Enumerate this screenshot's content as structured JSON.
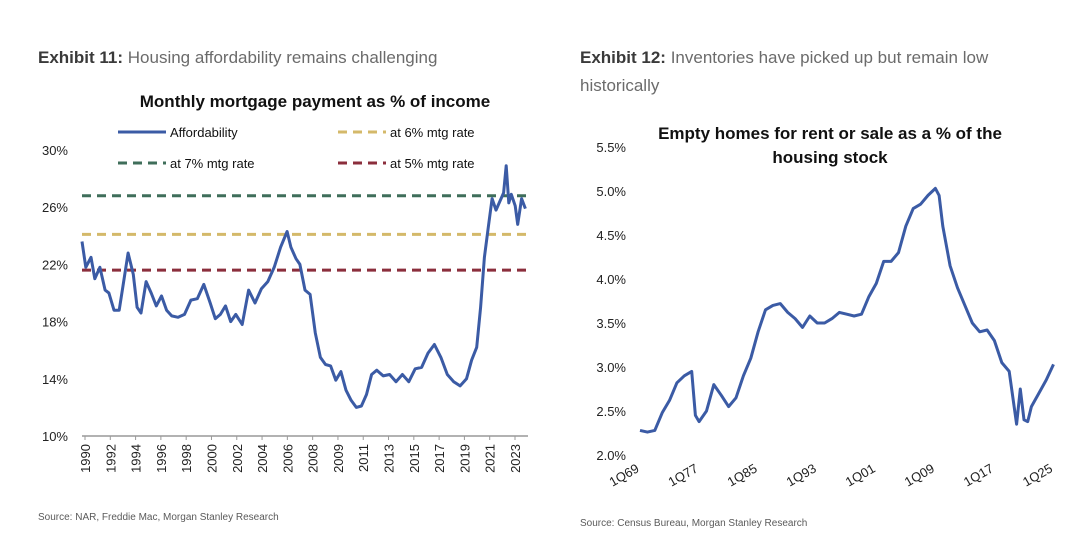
{
  "exhibits": [
    {
      "label": "Exhibit 11:",
      "caption": "Housing affordability remains challenging",
      "source": "Source: NAR, Freddie Mac, Morgan Stanley Research"
    },
    {
      "label": "Exhibit 12:",
      "caption_line1": "Inventories have picked up but remain low",
      "caption_line2": "historically",
      "source": "Source: Census Bureau, Morgan Stanley Research"
    }
  ],
  "chart_data": [
    {
      "type": "line",
      "title": "Monthly mortgage payment as % of income",
      "ylim": [
        10,
        30
      ],
      "yticks": [
        "10%",
        "14%",
        "18%",
        "22%",
        "26%",
        "30%"
      ],
      "xticks": [
        "1990",
        "1992",
        "1994",
        "1996",
        "1998",
        "2000",
        "2002",
        "2004",
        "2006",
        "2008",
        "2009",
        "2011",
        "2013",
        "2015",
        "2017",
        "2019",
        "2021",
        "2023"
      ],
      "legend": [
        "Affordability",
        "at 6% mtg rate",
        "at 7% mtg rate",
        "at 5% mtg rate"
      ],
      "colors": {
        "affordability": "#3b5ba5",
        "rate6": "#d4b96a",
        "rate7": "#3f6e5a",
        "rate5": "#8b2e3c"
      },
      "series": [
        {
          "name": "Affordability",
          "x": [
            1990.0,
            1990.3,
            1990.7,
            1991.0,
            1991.4,
            1991.8,
            1992.1,
            1992.5,
            1992.9,
            1993.2,
            1993.6,
            1994.0,
            1994.3,
            1994.6,
            1995.0,
            1995.4,
            1995.8,
            1996.2,
            1996.6,
            1997.0,
            1997.5,
            1998.0,
            1998.5,
            1999.0,
            1999.5,
            2000.0,
            2000.4,
            2000.8,
            2001.2,
            2001.6,
            2002.0,
            2002.5,
            2003.0,
            2003.5,
            2004.0,
            2004.5,
            2005.0,
            2005.5,
            2006.0,
            2006.3,
            2006.7,
            2007.0,
            2007.4,
            2007.8,
            2008.2,
            2008.6,
            2009.0,
            2009.4,
            2009.8,
            2010.2,
            2010.6,
            2011.0,
            2011.4,
            2011.8,
            2012.2,
            2012.6,
            2013.0,
            2013.5,
            2014.0,
            2014.5,
            2015.0,
            2015.5,
            2016.0,
            2016.5,
            2017.0,
            2017.5,
            2018.0,
            2018.5,
            2019.0,
            2019.5,
            2020.0,
            2020.4,
            2020.8,
            2021.1,
            2021.4,
            2021.7,
            2022.0,
            2022.3,
            2022.6,
            2022.9,
            2023.1,
            2023.3,
            2023.5,
            2023.8,
            2024.0,
            2024.3,
            2024.6
          ],
          "values": [
            23.6,
            21.8,
            22.5,
            21.0,
            21.8,
            20.2,
            20.0,
            18.8,
            18.8,
            20.5,
            22.8,
            21.3,
            19.0,
            18.6,
            20.8,
            20.0,
            19.1,
            19.8,
            18.8,
            18.4,
            18.3,
            18.5,
            19.5,
            19.6,
            20.6,
            19.3,
            18.2,
            18.5,
            19.1,
            18.0,
            18.5,
            17.8,
            20.2,
            19.3,
            20.3,
            20.8,
            21.8,
            23.2,
            24.3,
            23.2,
            22.4,
            22.0,
            20.2,
            19.9,
            17.2,
            15.5,
            15.0,
            14.9,
            13.9,
            14.5,
            13.2,
            12.5,
            12.0,
            12.1,
            12.9,
            14.3,
            14.6,
            14.2,
            14.3,
            13.8,
            14.3,
            13.8,
            14.7,
            14.8,
            15.8,
            16.4,
            15.5,
            14.3,
            13.8,
            13.5,
            14.0,
            15.3,
            16.2,
            19.0,
            22.5,
            24.6,
            26.6,
            25.8,
            26.4,
            27.0,
            28.9,
            26.3,
            26.9,
            26.1,
            24.8,
            26.6,
            25.9
          ]
        },
        {
          "name": "at 7% mtg rate",
          "value": 26.8
        },
        {
          "name": "at 6% mtg rate",
          "value": 24.1
        },
        {
          "name": "at 5% mtg rate",
          "value": 21.6
        }
      ]
    },
    {
      "type": "line",
      "title_line1": "Empty homes for rent or sale as a % of the",
      "title_line2": "housing stock",
      "ylim": [
        2.0,
        5.5
      ],
      "yticks": [
        "2.0%",
        "2.5%",
        "3.0%",
        "3.5%",
        "4.0%",
        "4.5%",
        "5.0%",
        "5.5%"
      ],
      "xticks": [
        "1Q69",
        "1Q77",
        "1Q85",
        "1Q93",
        "1Q01",
        "1Q09",
        "1Q17",
        "1Q25"
      ],
      "series": [
        {
          "name": "",
          "x": [
            1969.0,
            1970.0,
            1971.0,
            1972.0,
            1973.0,
            1974.0,
            1975.0,
            1976.0,
            1976.5,
            1977.0,
            1978.0,
            1979.0,
            1980.0,
            1981.0,
            1982.0,
            1983.0,
            1984.0,
            1985.0,
            1986.0,
            1987.0,
            1988.0,
            1989.0,
            1990.0,
            1991.0,
            1992.0,
            1993.0,
            1994.0,
            1995.0,
            1996.0,
            1997.0,
            1998.0,
            1999.0,
            2000.0,
            2001.0,
            2002.0,
            2003.0,
            2004.0,
            2005.0,
            2006.0,
            2007.0,
            2008.0,
            2009.0,
            2009.5,
            2010.0,
            2011.0,
            2012.0,
            2013.0,
            2014.0,
            2015.0,
            2016.0,
            2017.0,
            2018.0,
            2019.0,
            2020.0,
            2020.5,
            2021.0,
            2021.5,
            2022.0,
            2023.0,
            2024.0,
            2025.0
          ],
          "values": [
            2.28,
            2.26,
            2.28,
            2.48,
            2.62,
            2.82,
            2.9,
            2.95,
            2.45,
            2.38,
            2.5,
            2.8,
            2.68,
            2.55,
            2.65,
            2.9,
            3.1,
            3.4,
            3.65,
            3.7,
            3.72,
            3.62,
            3.55,
            3.45,
            3.58,
            3.5,
            3.5,
            3.55,
            3.62,
            3.6,
            3.58,
            3.6,
            3.8,
            3.95,
            4.2,
            4.2,
            4.3,
            4.6,
            4.8,
            4.85,
            4.95,
            5.03,
            4.95,
            4.6,
            4.15,
            3.9,
            3.7,
            3.5,
            3.4,
            3.42,
            3.3,
            3.05,
            2.95,
            2.35,
            2.75,
            2.4,
            2.38,
            2.55,
            2.7,
            2.85,
            3.03
          ]
        }
      ]
    }
  ]
}
